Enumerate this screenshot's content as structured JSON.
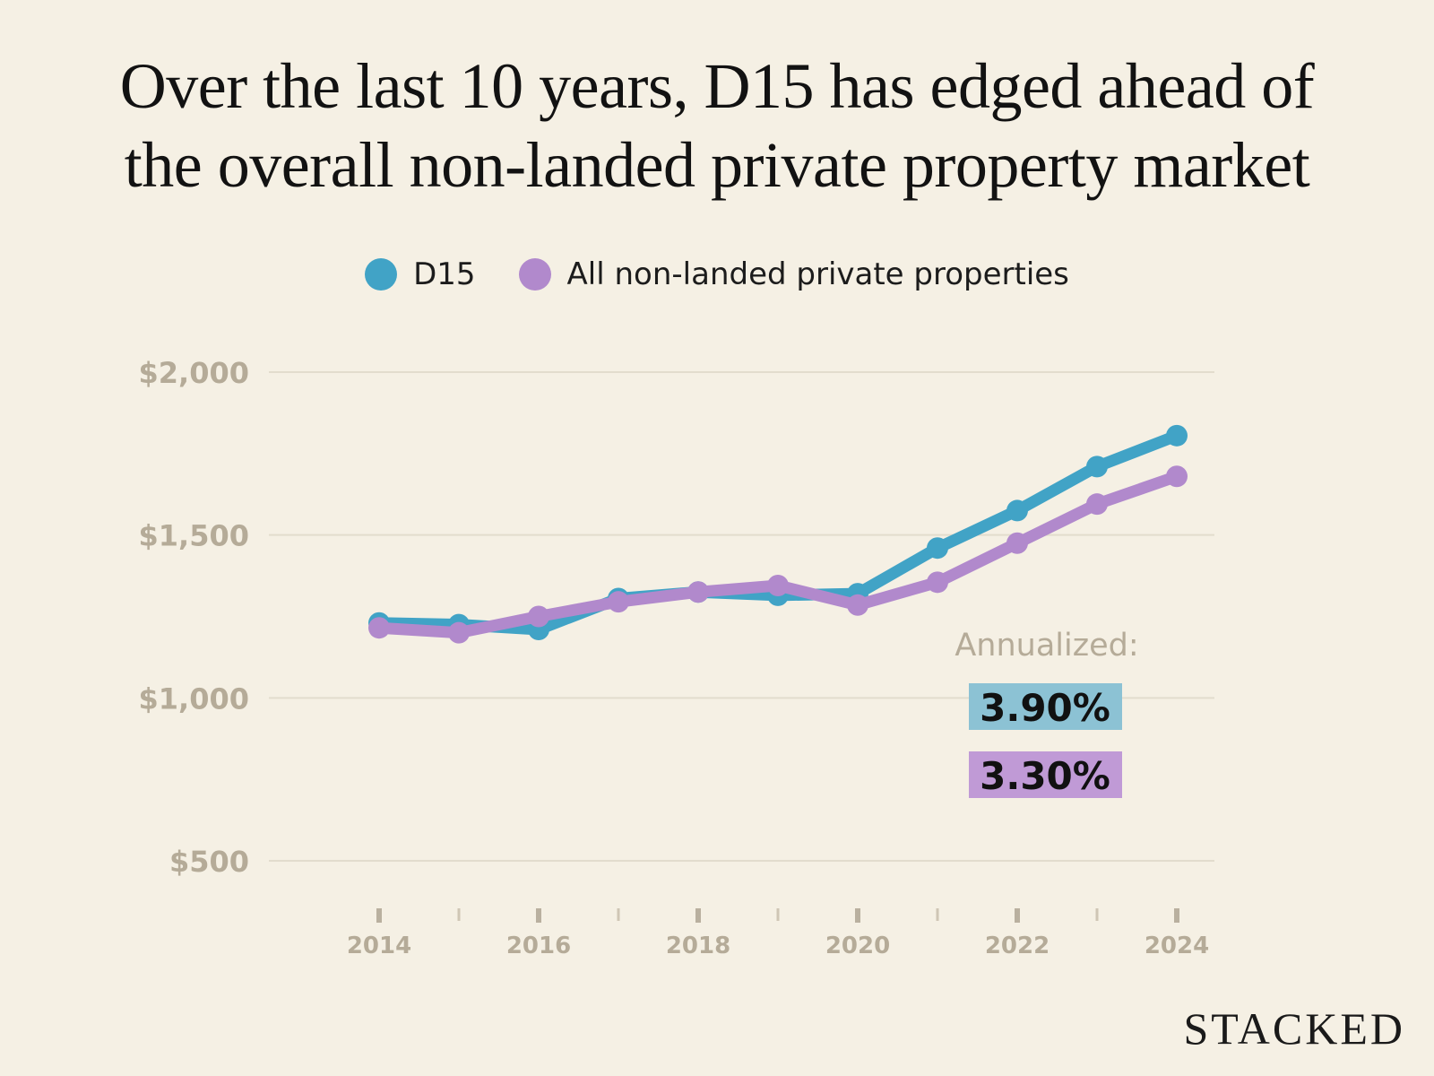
{
  "chart_data": {
    "type": "line",
    "title": "Over the last 10 years, D15 has edged ahead of the overall non-landed private property market",
    "title_lines": [
      "Over the last 10 years, D15 has edged ahead of",
      "the overall non-landed private property market"
    ],
    "x": [
      2014,
      2015,
      2016,
      2017,
      2018,
      2019,
      2020,
      2021,
      2022,
      2023,
      2024
    ],
    "x_tick_labels": [
      "2014",
      "2016",
      "2018",
      "2020",
      "2022",
      "2024"
    ],
    "y_ticks": [
      500,
      1000,
      1500,
      2000
    ],
    "y_tick_labels": [
      "$500",
      "$1,000",
      "$1,500",
      "$2,000"
    ],
    "ylim": [
      500,
      2000
    ],
    "xlabel": "",
    "ylabel": "",
    "grid": true,
    "legend_position": "top-center",
    "series": [
      {
        "name": "D15",
        "color": "#41a3c6",
        "values": [
          1230,
          1225,
          1210,
          1305,
          1325,
          1315,
          1320,
          1460,
          1575,
          1710,
          1805
        ]
      },
      {
        "name": "All non-landed private properties",
        "color": "#b189cc",
        "values": [
          1215,
          1200,
          1250,
          1295,
          1325,
          1345,
          1285,
          1355,
          1475,
          1595,
          1680
        ]
      }
    ],
    "annotation": {
      "label": "Annualized:",
      "values": [
        {
          "series": "D15",
          "text": "3.90%",
          "color": "#8cc2d4"
        },
        {
          "series": "All non-landed private properties",
          "text": "3.30%",
          "color": "#c09ad6"
        }
      ]
    }
  },
  "legend": {
    "items": [
      {
        "label": "D15",
        "color": "#41a3c6"
      },
      {
        "label": "All non-landed private properties",
        "color": "#b189cc"
      }
    ]
  },
  "brand": {
    "name": "STACKED"
  }
}
